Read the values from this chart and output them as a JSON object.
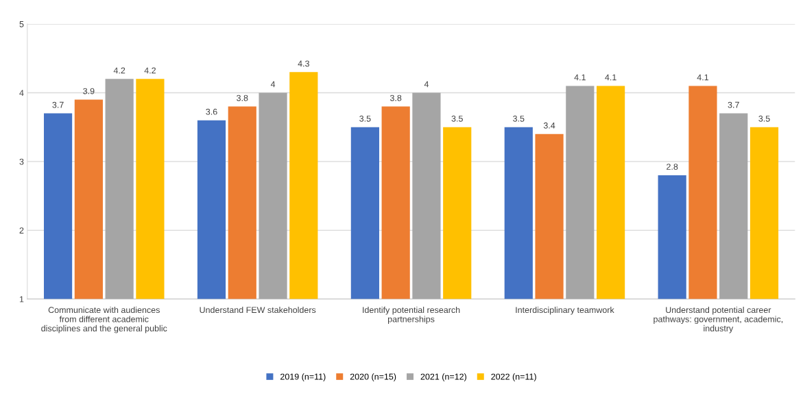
{
  "chart_data": {
    "type": "bar",
    "categories": [
      "Communicate with audiences\nfrom different academic\ndisciplines and the general public",
      "Understand FEW stakeholders",
      "Identify potential research\npartnerships",
      "Interdisciplinary teamwork",
      "Understand potential career\npathways: government, academic,\nindustry"
    ],
    "series": [
      {
        "name": "2019 (n=11)",
        "color": "#4472c4",
        "values": [
          3.7,
          3.6,
          3.5,
          3.5,
          2.8
        ]
      },
      {
        "name": "2020 (n=15)",
        "color": "#ed7d31",
        "values": [
          3.9,
          3.8,
          3.8,
          3.4,
          4.1
        ]
      },
      {
        "name": "2021 (n=12)",
        "color": "#a5a5a5",
        "values": [
          4.2,
          4,
          4,
          4.1,
          3.7
        ]
      },
      {
        "name": "2022 (n=11)",
        "color": "#ffc000",
        "values": [
          4.2,
          4.3,
          3.5,
          4.1,
          3.5
        ]
      }
    ],
    "ylim": [
      1,
      5
    ],
    "yticks": [
      1,
      2,
      3,
      4,
      5
    ],
    "grid": "y",
    "data_labels": true,
    "legend": "bottom"
  }
}
